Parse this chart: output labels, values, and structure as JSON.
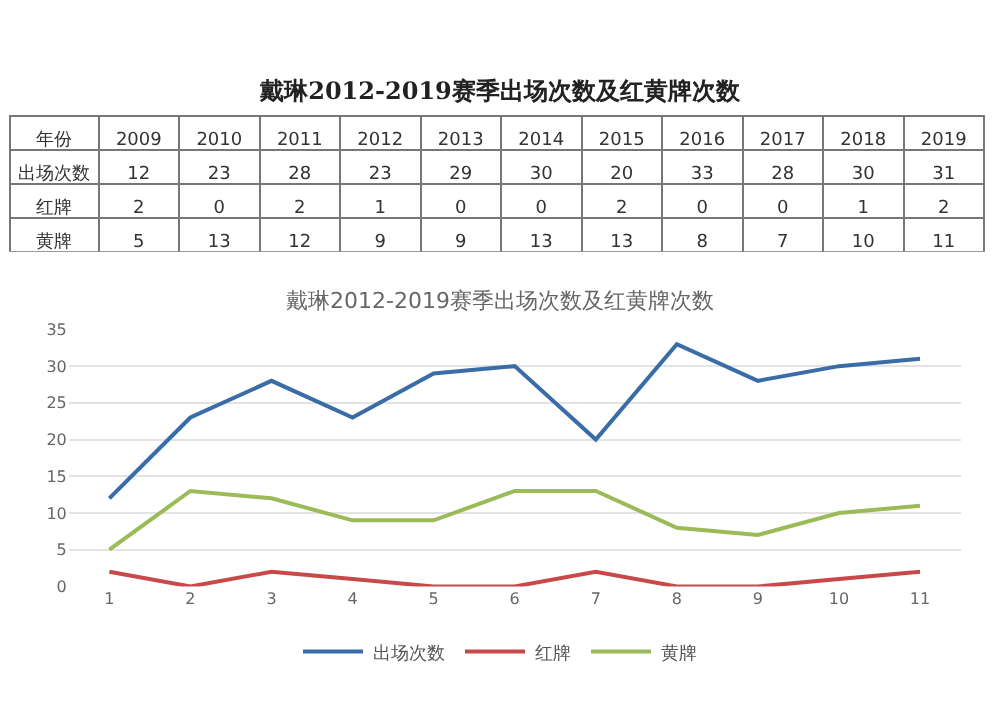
{
  "chart_data": {
    "type": "line",
    "title": "戴琳2012-2019赛季出场次数及红黄牌次数",
    "annotations": [
      "年份",
      "2009",
      "2010",
      "2011",
      "2012",
      "2013",
      "2014",
      "2015",
      "2016",
      "2017",
      "2018",
      "2019"
    ],
    "categories": [
      "1",
      "2",
      "3",
      "4",
      "5",
      "6",
      "7",
      "8",
      "9",
      "10",
      "11"
    ],
    "series": [
      {
        "name": "出场次数",
        "color": "#3a6ca8",
        "values": [
          12,
          23,
          28,
          23,
          29,
          30,
          20,
          33,
          28,
          30,
          31
        ]
      },
      {
        "name": "红牌",
        "color": "#c9484a",
        "values": [
          2,
          0,
          2,
          1,
          0,
          0,
          2,
          0,
          0,
          1,
          2
        ]
      },
      {
        "name": "黄牌",
        "color": "#9bbb59",
        "values": [
          5,
          13,
          12,
          9,
          9,
          13,
          13,
          8,
          7,
          10,
          11
        ]
      }
    ],
    "ylim": [
      0,
      35
    ],
    "yticks": [
      0,
      5,
      10,
      15,
      20,
      25,
      30,
      35
    ],
    "grid": "y",
    "legend": "bottom",
    "marker": "none",
    "line_style": "solid",
    "data_labels": true
  }
}
